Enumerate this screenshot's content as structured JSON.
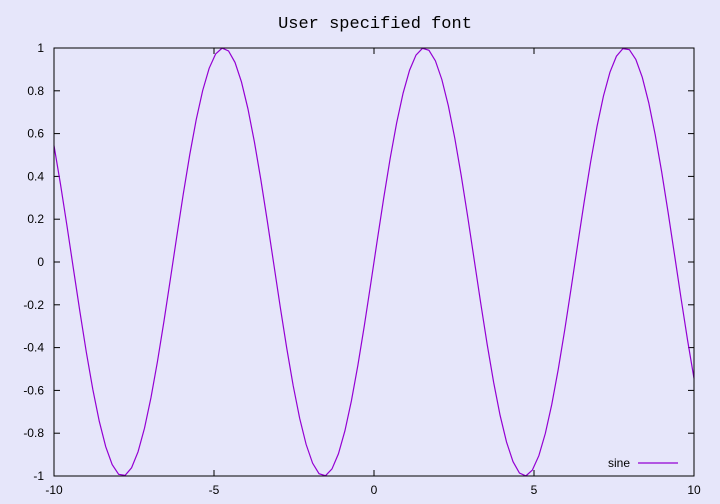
{
  "chart_data": {
    "type": "line",
    "title": "User specified font",
    "xlabel": "",
    "ylabel": "",
    "xlim": [
      -10,
      10
    ],
    "ylim": [
      -1,
      1
    ],
    "x_ticks": [
      -10,
      -5,
      0,
      5,
      10
    ],
    "y_ticks": [
      -1,
      -0.8,
      -0.6,
      -0.4,
      -0.2,
      0,
      0.2,
      0.4,
      0.6,
      0.8,
      1
    ],
    "grid": false,
    "legend": "bottom-right",
    "series": [
      {
        "name": "sine",
        "function": "sin(x)",
        "color": "#9400d3",
        "sample_x_start": -10,
        "sample_x_end": 10,
        "samples": 100
      }
    ]
  },
  "colors": {
    "background": "#e6e6fa",
    "axis": "#000000",
    "series": "#9400d3"
  }
}
